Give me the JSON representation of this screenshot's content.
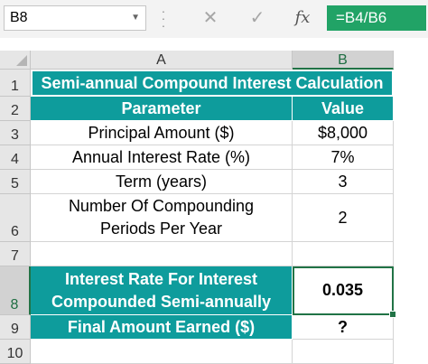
{
  "formula_bar": {
    "name_box": "B8",
    "cancel_glyph": "✕",
    "enter_glyph": "✓",
    "fx_label": "fx",
    "formula": "=B4/B6"
  },
  "columns": [
    "A",
    "B"
  ],
  "rows": [
    "1",
    "2",
    "3",
    "4",
    "5",
    "6",
    "7",
    "8",
    "9",
    "10"
  ],
  "sheet": {
    "title": "Semi-annual Compound Interest Calculation",
    "header_param": "Parameter",
    "header_value": "Value",
    "r3": {
      "label": "Principal Amount ($)",
      "value": "$8,000"
    },
    "r4": {
      "label": "Annual Interest Rate (%)",
      "value": "7%"
    },
    "r5": {
      "label": "Term (years)",
      "value": "3"
    },
    "r6": {
      "label": "Number Of Compounding Periods Per Year",
      "value": "2"
    },
    "r8": {
      "label": "Interest Rate For Interest Compounded Semi-annually",
      "value": "0.035"
    },
    "r9": {
      "label": "Final Amount Earned ($)",
      "value": "?"
    }
  },
  "colors": {
    "teal": "#0e9c9c",
    "excel_green": "#21a366"
  },
  "selected_cell": "B8"
}
